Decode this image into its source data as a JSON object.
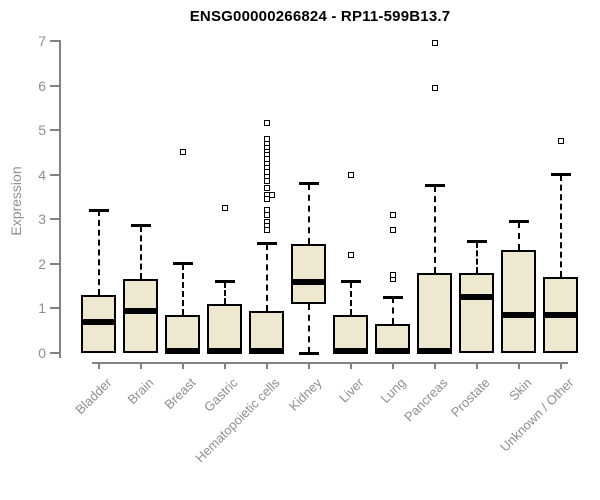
{
  "title": "ENSG00000266824 - RP11-599B13.7",
  "colors": {
    "background": "#ffffff",
    "box_fill": "#ede8cf",
    "box_border": "#000000",
    "median": "#000000",
    "whisker": "#000000",
    "outlier_border": "#000000",
    "outlier_fill": "#ffffff",
    "axis": "#828282",
    "tick_label": "#8f8f8f",
    "category_label": "#8f8f8f",
    "title": "#000000"
  },
  "chart_data": {
    "type": "boxplot",
    "title": "ENSG00000266824 - RP11-599B13.7",
    "xlabel": "",
    "ylabel": "Expression",
    "ylim": [
      0,
      7
    ],
    "y_ticks": [
      0,
      1,
      2,
      3,
      4,
      5,
      6,
      7
    ],
    "grid": false,
    "legend": false,
    "categories": [
      "Bladder",
      "Brain",
      "Breast",
      "Gastric",
      "Hematopoietic cells",
      "Kidney",
      "Liver",
      "Lung",
      "Pancreas",
      "Prostate",
      "Skin",
      "Unknown / Other"
    ],
    "series": [
      {
        "name": "Bladder",
        "whisker_low": 0,
        "q1": 0,
        "median": 0.7,
        "q3": 1.3,
        "whisker_high": 3.2,
        "outliers": []
      },
      {
        "name": "Brain",
        "whisker_low": 0,
        "q1": 0,
        "median": 0.95,
        "q3": 1.65,
        "whisker_high": 2.85,
        "outliers": []
      },
      {
        "name": "Breast",
        "whisker_low": 0,
        "q1": 0,
        "median": 0.05,
        "q3": 0.85,
        "whisker_high": 2.0,
        "outliers": [
          4.5
        ]
      },
      {
        "name": "Gastric",
        "whisker_low": 0,
        "q1": 0,
        "median": 0.05,
        "q3": 1.1,
        "whisker_high": 1.6,
        "outliers": [
          3.25
        ]
      },
      {
        "name": "Hematopoietic cells",
        "whisker_low": 0,
        "q1": 0,
        "median": 0.05,
        "q3": 0.95,
        "whisker_high": 2.45,
        "outliers": [
          5.15,
          4.8,
          4.7,
          4.6,
          4.5,
          4.45,
          4.35,
          4.25,
          4.15,
          4.05,
          3.95,
          3.85,
          3.7,
          3.55,
          3.55,
          3.45,
          3.2,
          3.1,
          2.95,
          2.85,
          2.75
        ]
      },
      {
        "name": "Kidney",
        "whisker_low": 0,
        "q1": 1.1,
        "median": 1.6,
        "q3": 2.45,
        "whisker_high": 3.8,
        "outliers": []
      },
      {
        "name": "Liver",
        "whisker_low": 0,
        "q1": 0,
        "median": 0.05,
        "q3": 0.85,
        "whisker_high": 1.6,
        "outliers": [
          2.2,
          4.0
        ]
      },
      {
        "name": "Lung",
        "whisker_low": 0,
        "q1": 0,
        "median": 0.05,
        "q3": 0.65,
        "whisker_high": 1.25,
        "outliers": [
          1.65,
          1.75,
          2.75,
          3.1
        ]
      },
      {
        "name": "Pancreas",
        "whisker_low": 0,
        "q1": 0,
        "median": 0.05,
        "q3": 1.8,
        "whisker_high": 3.75,
        "outliers": [
          5.95,
          6.95
        ]
      },
      {
        "name": "Prostate",
        "whisker_low": 0,
        "q1": 0,
        "median": 1.25,
        "q3": 1.8,
        "whisker_high": 2.5,
        "outliers": []
      },
      {
        "name": "Skin",
        "whisker_low": 0,
        "q1": 0,
        "median": 0.85,
        "q3": 2.3,
        "whisker_high": 2.95,
        "outliers": []
      },
      {
        "name": "Unknown / Other",
        "whisker_low": 0,
        "q1": 0,
        "median": 0.85,
        "q3": 1.7,
        "whisker_high": 4.0,
        "outliers": [
          4.75
        ]
      }
    ]
  }
}
